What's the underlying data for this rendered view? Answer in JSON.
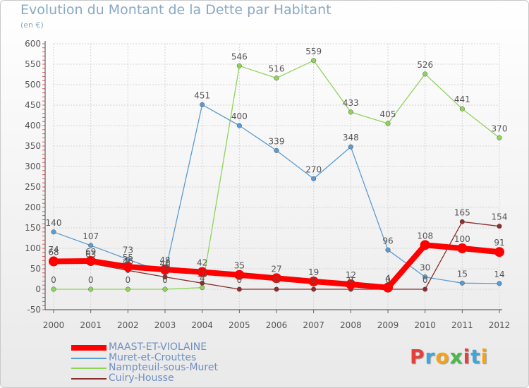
{
  "title": "Evolution du Montant de la Dette par Habitant",
  "unit_label": "(en €)",
  "logo_text": "Proxiti",
  "logo_colors": [
    "#e5403a",
    "#3ea7d9",
    "#f4a21a",
    "#4cb84a",
    "#e5403a",
    "#3ea7d9",
    "#f4a21a"
  ],
  "chart_data": {
    "type": "line",
    "title": "Evolution du Montant de la Dette par Habitant",
    "ylabel": "(en €)",
    "x": [
      "2000",
      "2001",
      "2002",
      "2003",
      "2004",
      "2005",
      "2006",
      "2007",
      "2008",
      "2009",
      "2010",
      "2011",
      "2012"
    ],
    "ylim": [
      -50,
      600
    ],
    "yticks": [
      -50,
      0,
      50,
      100,
      150,
      200,
      250,
      300,
      350,
      400,
      450,
      500,
      550,
      600
    ],
    "grid": true,
    "legend_position": "bottom-left",
    "series": [
      {
        "name": "MAAST-ET-VIOLAINE",
        "color": "#ff0000",
        "values": [
          68,
          69,
          55,
          48,
          42,
          35,
          27,
          19,
          12,
          4,
          108,
          100,
          91
        ],
        "labels": [
          "68",
          "69",
          "55",
          "48",
          "42",
          "35",
          "27",
          "19",
          "12",
          "4",
          "108",
          "100",
          "91"
        ]
      },
      {
        "name": "Muret-et-Crouttes",
        "color": "#5b9bd0",
        "values": [
          140,
          107,
          73,
          40,
          451,
          400,
          339,
          270,
          348,
          96,
          30,
          15,
          14
        ],
        "labels": [
          "140",
          "107",
          "73",
          "40",
          "451",
          "400",
          "339",
          "270",
          "348",
          "96",
          "30",
          "15",
          "14"
        ]
      },
      {
        "name": "Nampteuil-sous-Muret",
        "color": "#8fd45a",
        "values": [
          0,
          0,
          0,
          0,
          4,
          546,
          516,
          559,
          433,
          405,
          526,
          441,
          370
        ],
        "labels": [
          "0",
          "0",
          "0",
          "0",
          "4",
          "546",
          "516",
          "559",
          "433",
          "405",
          "526",
          "441",
          "370"
        ]
      },
      {
        "name": "Cuiry-Housse",
        "color": "#8b2e2e",
        "values": [
          74,
          63,
          46,
          30,
          15,
          0,
          0,
          0,
          0,
          0,
          0,
          165,
          154
        ],
        "labels": [
          "74",
          "63",
          "46",
          "30",
          "15",
          "0",
          "0",
          "0",
          "0",
          "0",
          "0",
          "165",
          "154"
        ]
      }
    ]
  }
}
